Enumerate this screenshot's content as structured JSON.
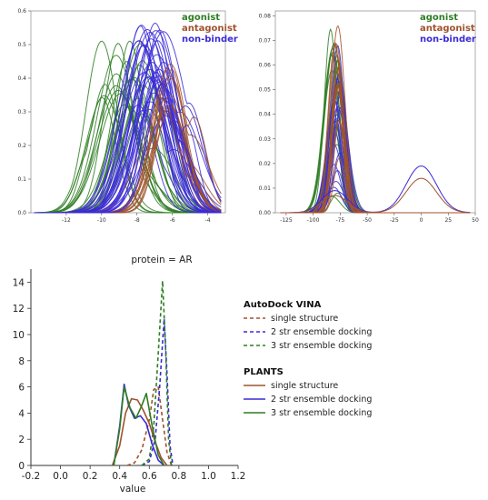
{
  "chart_data": [
    {
      "type": "line",
      "title": "",
      "xlabel": "",
      "ylabel": "",
      "xlim": [
        -14,
        -3
      ],
      "ylim": [
        0,
        0.6
      ],
      "xticks": [
        "-12",
        "-10",
        "-8",
        "-6",
        "-4"
      ],
      "yticks": [
        "0.0",
        "0.1",
        "0.2",
        "0.3",
        "0.4",
        "0.5",
        "0.6"
      ],
      "legend": {
        "placement": "top-right",
        "entries": [
          "agonist",
          "antagonist",
          "non-binder"
        ]
      },
      "colors": {
        "agonist": "#2e7d22",
        "antagonist": "#a0522d",
        "non-binder": "#3a2ad6"
      },
      "series": [
        {
          "name": "agonist",
          "peak_x_range": [
            -10.0,
            -7.5
          ],
          "peak_y_range": [
            0.3,
            0.53
          ]
        },
        {
          "name": "antagonist",
          "peak_x_range": [
            -6.8,
            -5.9
          ],
          "peak_y_range": [
            0.3,
            0.48
          ]
        },
        {
          "name": "non-binder",
          "peak_x_range": [
            -8.0,
            -6.2
          ],
          "peak_y_range": [
            0.3,
            0.58
          ]
        }
      ]
    },
    {
      "type": "line",
      "title": "",
      "xlabel": "",
      "ylabel": "",
      "xlim": [
        -135,
        50
      ],
      "ylim": [
        0,
        0.082
      ],
      "xticks": [
        "-125",
        "-100",
        "-75",
        "-50",
        "-25",
        "0",
        "25",
        "50"
      ],
      "yticks": [
        "0.00",
        "0.01",
        "0.02",
        "0.03",
        "0.04",
        "0.05",
        "0.06",
        "0.07",
        "0.08"
      ],
      "legend": {
        "placement": "top-right",
        "entries": [
          "agonist",
          "antagonist",
          "non-binder"
        ]
      },
      "colors": {
        "agonist": "#2e7d22",
        "antagonist": "#a0522d",
        "non-binder": "#3a2ad6"
      },
      "series": [
        {
          "name": "agonist",
          "peak_x_range": [
            -84,
            -76
          ],
          "peak_y_range": [
            0.005,
            0.075
          ]
        },
        {
          "name": "antagonist",
          "peak_x_range": [
            -80,
            -76
          ],
          "peak_y_range": [
            0.02,
            0.077
          ]
        },
        {
          "name": "non-binder",
          "peak_x_range": [
            -82,
            -74
          ],
          "peak_y_range": [
            0.007,
            0.07
          ]
        }
      ],
      "secondary_peak": {
        "x": 0,
        "y_values": [
          0.019,
          0.014
        ]
      }
    },
    {
      "type": "line",
      "title": "protein = AR",
      "xlabel": "value",
      "ylabel": "",
      "xlim": [
        -0.2,
        1.2
      ],
      "ylim": [
        0,
        15
      ],
      "xticks": [
        "-0.2",
        "0.0",
        "0.2",
        "0.4",
        "0.6",
        "0.8",
        "1.0",
        "1.2"
      ],
      "yticks": [
        "0",
        "2",
        "4",
        "6",
        "8",
        "10",
        "12",
        "14"
      ],
      "legend": {
        "placement": "right",
        "groups": [
          {
            "title": "AutoDock VINA",
            "style": "dashed",
            "entries": [
              "single structure",
              "2 str ensemble docking",
              "3 str ensemble docking"
            ]
          },
          {
            "title": "PLANTS",
            "style": "solid",
            "entries": [
              "single structure",
              "2 str ensemble docking",
              "3 str ensemble docking"
            ]
          }
        ]
      },
      "colors": {
        "single": "#a0522d",
        "two": "#3a2ad6",
        "three": "#2e7d22"
      },
      "series": [
        {
          "name": "single structure",
          "group": "AutoDock VINA",
          "x": [
            0.45,
            0.5,
            0.55,
            0.6,
            0.63,
            0.66,
            0.69,
            0.72,
            0.75
          ],
          "y": [
            0,
            0.2,
            1.2,
            3.5,
            5.8,
            6.0,
            3.5,
            1.0,
            0
          ]
        },
        {
          "name": "2 str ensemble docking",
          "group": "AutoDock VINA",
          "x": [
            0.55,
            0.6,
            0.64,
            0.67,
            0.7,
            0.72,
            0.74,
            0.76
          ],
          "y": [
            0,
            0.3,
            2.0,
            6.0,
            11.2,
            7.0,
            1.5,
            0
          ]
        },
        {
          "name": "3 str ensemble docking",
          "group": "AutoDock VINA",
          "x": [
            0.55,
            0.6,
            0.63,
            0.66,
            0.69,
            0.71,
            0.73,
            0.75
          ],
          "y": [
            0,
            0.5,
            3.0,
            8.5,
            14.1,
            9.0,
            2.0,
            0
          ]
        },
        {
          "name": "single structure",
          "group": "PLANTS",
          "x": [
            0.35,
            0.4,
            0.44,
            0.48,
            0.52,
            0.56,
            0.6,
            0.64,
            0.68,
            0.72
          ],
          "y": [
            0,
            1.5,
            4.0,
            5.1,
            5.0,
            4.2,
            3.2,
            1.8,
            0.6,
            0
          ]
        },
        {
          "name": "2 str ensemble docking",
          "group": "PLANTS",
          "x": [
            0.36,
            0.4,
            0.43,
            0.46,
            0.5,
            0.54,
            0.58,
            0.62,
            0.66,
            0.7
          ],
          "y": [
            0,
            3.0,
            6.2,
            4.6,
            3.6,
            3.8,
            3.2,
            1.6,
            0.4,
            0
          ]
        },
        {
          "name": "3 str ensemble docking",
          "group": "PLANTS",
          "x": [
            0.36,
            0.4,
            0.43,
            0.47,
            0.51,
            0.55,
            0.58,
            0.62,
            0.66,
            0.7
          ],
          "y": [
            0,
            2.8,
            6.0,
            4.4,
            3.6,
            4.6,
            5.5,
            3.0,
            0.8,
            0
          ]
        }
      ]
    }
  ]
}
